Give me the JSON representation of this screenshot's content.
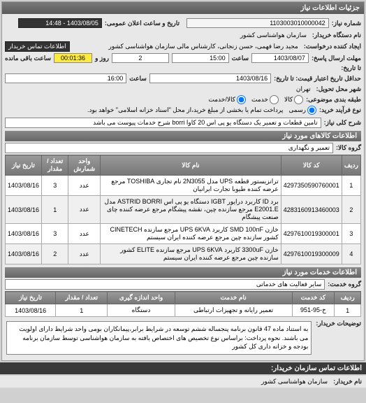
{
  "panel_title": "جزئیات اطلاعات نیاز",
  "row1": {
    "request_no_label": "شماره نیاز:",
    "request_no": "1103003010000042",
    "announce_label": "تاریخ و ساعت اعلان عمومی:",
    "announce_value": "1403/08/05 - 14:48"
  },
  "row2": {
    "buyer_org_label": "نام دستگاه خریدار:",
    "buyer_org": "سازمان هواشناسی کشور"
  },
  "row3": {
    "creator_label": "ایجاد کننده درخواست:",
    "creator": "مجید رضا فهمی، حسن زنجانی، کارشناس مالی سازمان هواشناسی کشور",
    "contact_link": "اطلاعات تماس خریدار"
  },
  "row4": {
    "deadline_label": "مهلت ارسال پاسخ:",
    "date1": "1403/08/07",
    "time_label1": "ساعت",
    "time1": "15:00",
    "days_label": "روز و",
    "days": "2",
    "remain_time": "00:01:36",
    "remain_label": "ساعت باقی مانده"
  },
  "row5": {
    "until_label": "تا تاریخ:"
  },
  "row6": {
    "price_validity_label": "حداقل تاریخ اعتبار قیمت: تا تاریخ:",
    "date2": "1403/08/16",
    "time_label2": "ساعت",
    "time2": "16:00"
  },
  "row7": {
    "delivery_city_label": "شهر محل تحویل:",
    "delivery_city": "تهران"
  },
  "row8": {
    "goods_type_label": "طبقه بندی موضوعی:",
    "opt_goods": "کالا",
    "opt_service": "خدمت",
    "opt_both": "کالا/خدمت"
  },
  "row9": {
    "buy_type_label": "نوع فرآیند خرید:",
    "opt_full": "رسمی",
    "buy_note": "پرداخت تمام یا بخشی از مبلغ خرید،از محل \"اسناد خزانه اسلامی\" خواهد بود."
  },
  "need_title_label": "شرح کلی نیاز:",
  "need_title": "تامین قطعات و تعمیر یک دستگاه یو پی اس 20 کاوا borri شرح خدمات پیوست می باشد",
  "goods_section": "اطلاعات کالاهای مورد نیاز",
  "goods_group_label": "گروه کالا:",
  "goods_group": "تعمیر و نگهداری",
  "goods_table": {
    "headers": [
      "ردیف",
      "کد کالا",
      "نام کالا",
      "واحد شمارش",
      "تعداد / مقدار",
      "تاریخ نیاز"
    ],
    "rows": [
      [
        "1",
        "4297350590760001",
        "ترانزیستور قطعه UPS مدل 2N3055 نام تجاری TOSHIBA مرجع عرضه کننده طیوبا تجارت ایرانیان",
        "عدد",
        "3",
        "1403/08/16"
      ],
      [
        "2",
        "4283160913460003",
        "برد ID کاربرد درایور IGBT دستگاه یو پی اس ASTRID BORRI مدل E2001.E مرجع سازنده چین، نقشه پیشگام مرجع عرضه کننده چای صنعت پیشگام",
        "عدد",
        "1",
        "1403/08/16"
      ],
      [
        "3",
        "4297610019300001",
        "خازن SMD 100nF کاربرد UPS 6KVA مرجع سازنده CINETECH کشور سازنده چین مرجع عرضه کننده ایران سیستم",
        "عدد",
        "3",
        "1403/08/16"
      ],
      [
        "4",
        "4297610019300009",
        "خازن 3300uF کاربرد UPS 6KVA مرجع سازنده ELITE کشور سازنده چین مرجع عرضه کننده ایران سیستم",
        "عدد",
        "2",
        "1403/08/16"
      ]
    ]
  },
  "services_section": "اطلاعات خدمات مورد نیاز",
  "service_group_label": "گروه خدمت:",
  "service_group": "سایر فعالیت های خدماتی",
  "services_table": {
    "headers": [
      "ردیف",
      "کد خدمت",
      "نام خدمت",
      "واحد اندازه گیری",
      "تعداد / مقدار",
      "تاریخ نیاز"
    ],
    "rows": [
      [
        "1",
        "خ-95-951",
        "تعمیر رایانه و تجهیزات ارتباطی",
        "دستگاه",
        "1",
        "1403/08/16"
      ]
    ]
  },
  "buyer_notes_label": "توضیحات خریدار:",
  "buyer_notes": "به استناد ماده 47 قانون برنامه پنجساله ششم توسعه در شرایط برابر،پیمانکاران بومی واحد شرایط دارای اولویت می باشند. نحوه پرداخت: براساس نوع تخصیص های اختصاص یافته به سازمان هواشناسی توسط سازمان برنامه بودجه و خزانه داری کل کشور",
  "footer": {
    "contact_title": "اطلاعات تماس سازمان خریدار:",
    "org_label": "نام خریدار:",
    "org_value": "سازمان هواشناسی کشور"
  },
  "colors": {
    "header_bg": "#6a6a6a",
    "time_highlight": "#ffeb3b"
  }
}
